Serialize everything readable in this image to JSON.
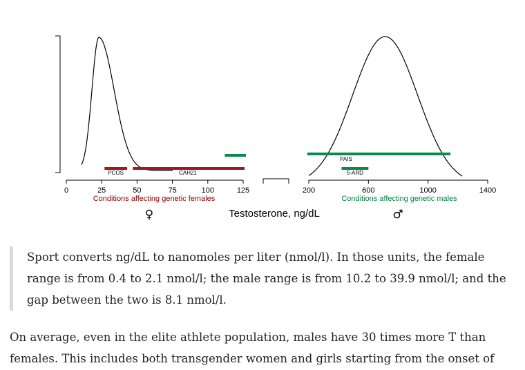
{
  "chart_data": {
    "type": "line",
    "panels": [
      {
        "name": "female",
        "xlim": [
          0,
          125
        ],
        "ticks": [
          "0",
          "25",
          "50",
          "75",
          "100",
          "125"
        ],
        "tick_values": [
          0,
          25,
          50,
          75,
          100,
          125
        ],
        "curve_peak": 23,
        "condition_label": "Conditions affecting genetic females",
        "sex_symbol": "♀",
        "bars": [
          {
            "label": "PCOS",
            "from": 27,
            "to": 43,
            "color": "#9b1b1b"
          },
          {
            "label": "CAH21",
            "from": 47,
            "to": 126,
            "color": "#9b1b1b"
          },
          {
            "label": "",
            "from": 112,
            "to": 127,
            "color": "#0a8a4a"
          }
        ]
      },
      {
        "name": "male",
        "xlim": [
          200,
          1400
        ],
        "ticks": [
          "200",
          "600",
          "1000",
          "1400"
        ],
        "tick_values": [
          200,
          600,
          1000,
          1400
        ],
        "curve_peak": 712,
        "condition_label": "Conditions affecting genetic males",
        "sex_symbol": "♂",
        "bars": [
          {
            "label": "PAIS",
            "from": 190,
            "to": 1150,
            "color": "#0a8a4a"
          },
          {
            "label": "5-ARD",
            "from": 420,
            "to": 600,
            "color": "#0a8a4a"
          }
        ]
      }
    ],
    "xlabel": "Testosterone, ng/dL"
  },
  "quote": {
    "lines": [
      "Sport converts ng/dL to nanomoles per liter (nmol/l). In those units, the female",
      "range is from 0.4 to 2.1 nmol/l; the male range is from 10.2 to 39.9 nmol/l; and the",
      "gap between the two is 8.1 nmol/l."
    ]
  },
  "paragraph": {
    "lines": [
      "On average, even in the elite athlete population, males have 30 times more T than",
      "females. This includes both transgender women and girls starting from the onset of"
    ]
  },
  "colors": {
    "female": "#9b1b1b",
    "male": "#0a8a4a"
  }
}
